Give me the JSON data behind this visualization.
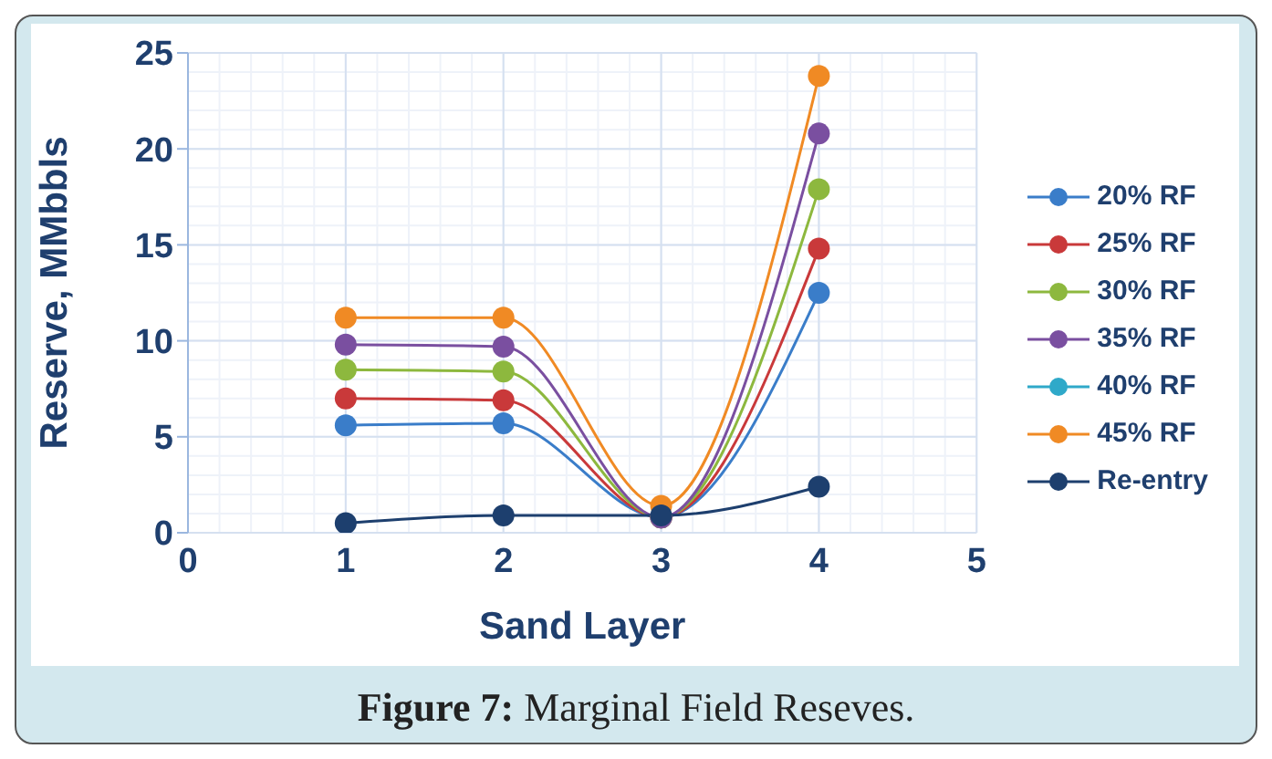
{
  "chart_data": {
    "type": "line",
    "xlabel": "Sand Layer",
    "ylabel": "Reserve, MMbbls",
    "annotations": [
      "Figure 7: Marginal Field Reseves."
    ],
    "x": [
      1,
      2,
      3,
      4
    ],
    "series": [
      {
        "name": "20% RF",
        "color": "#3a7dc9",
        "values": [
          5.6,
          5.7,
          0.8,
          12.5
        ]
      },
      {
        "name": "25% RF",
        "color": "#c9393a",
        "values": [
          7.0,
          6.9,
          0.8,
          14.8
        ]
      },
      {
        "name": "30% RF",
        "color": "#8db83e",
        "values": [
          8.5,
          8.4,
          0.8,
          17.9
        ]
      },
      {
        "name": "35% RF",
        "color": "#7a4fa0",
        "values": [
          9.8,
          9.7,
          0.8,
          20.8
        ]
      },
      {
        "name": "40% RF",
        "color": "#2fa9c9",
        "values": [
          null,
          null,
          null,
          null
        ]
      },
      {
        "name": "45% RF",
        "color": "#f08a24",
        "values": [
          11.2,
          11.2,
          1.4,
          23.8
        ]
      },
      {
        "name": "Re-entry",
        "color": "#1d3f6e",
        "values": [
          0.5,
          0.9,
          0.9,
          2.4
        ]
      }
    ],
    "xlim": [
      0,
      5
    ],
    "xticks": [
      0,
      1,
      2,
      3,
      4,
      5
    ],
    "ylim": [
      0,
      25
    ],
    "yticks": [
      0,
      5,
      10,
      15,
      20,
      25
    ],
    "grid": true,
    "legend": "right",
    "marker": "circle",
    "line_style": "solid"
  }
}
